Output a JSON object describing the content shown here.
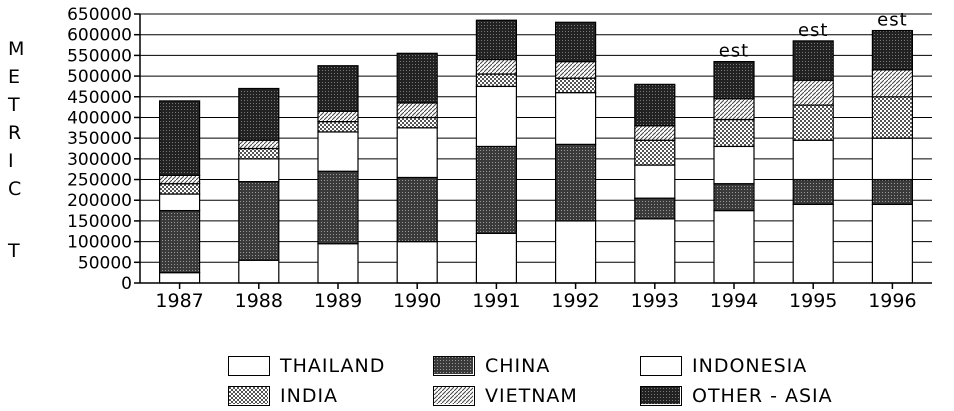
{
  "chart_data": {
    "type": "bar",
    "stacked": true,
    "categories": [
      "1987",
      "1988",
      "1989",
      "1990",
      "1991",
      "1992",
      "1993",
      "1994",
      "1995",
      "1996"
    ],
    "series": [
      {
        "name": "THAILAND",
        "values": [
          25000,
          55000,
          95000,
          100000,
          120000,
          150000,
          155000,
          175000,
          190000,
          190000
        ]
      },
      {
        "name": "CHINA",
        "values": [
          150000,
          190000,
          175000,
          155000,
          210000,
          185000,
          50000,
          65000,
          60000,
          60000
        ]
      },
      {
        "name": "INDONESIA",
        "values": [
          40000,
          55000,
          95000,
          120000,
          145000,
          125000,
          80000,
          90000,
          95000,
          100000
        ]
      },
      {
        "name": "INDIA",
        "values": [
          25000,
          25000,
          25000,
          25000,
          30000,
          35000,
          60000,
          65000,
          85000,
          100000
        ]
      },
      {
        "name": "VIETNAM",
        "values": [
          20000,
          20000,
          25000,
          35000,
          35000,
          40000,
          35000,
          50000,
          60000,
          65000
        ]
      },
      {
        "name": "OTHER - ASIA",
        "values": [
          180000,
          125000,
          110000,
          120000,
          95000,
          95000,
          100000,
          90000,
          95000,
          95000
        ]
      }
    ],
    "annotations": [
      {
        "category": "1994",
        "text": "est"
      },
      {
        "category": "1995",
        "text": "est"
      },
      {
        "category": "1996",
        "text": "est"
      }
    ],
    "ylabel_letters": [
      "M",
      "E",
      "T",
      "R",
      "I",
      "C",
      "",
      "T"
    ],
    "ylim": [
      0,
      650000
    ],
    "ytick_step": 50000,
    "grid": true,
    "legend_position": "bottom"
  },
  "legend": {
    "items": [
      "THAILAND",
      "CHINA",
      "INDONESIA",
      "INDIA",
      "VIETNAM",
      "OTHER - ASIA"
    ]
  }
}
